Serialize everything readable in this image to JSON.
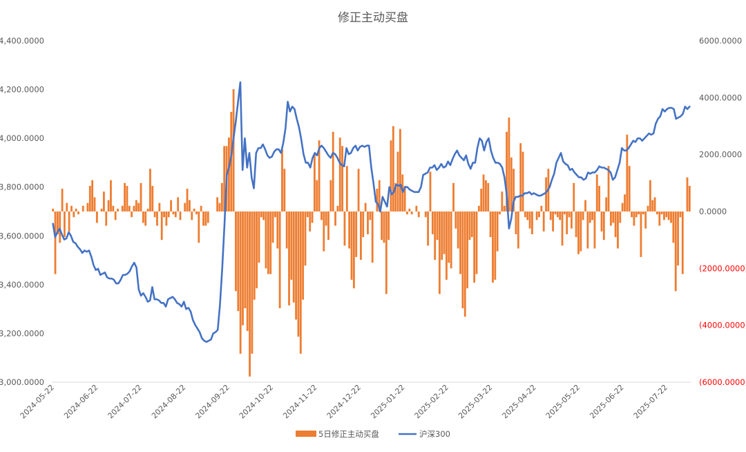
{
  "chart_data": {
    "type": "bar+line",
    "title": "修正主动买盘",
    "x_tick_labels": [
      "2024-05-22",
      "2024-06-22",
      "2024-07-22",
      "2024-08-22",
      "2024-09-22",
      "2024-10-22",
      "2024-11-22",
      "2024-12-22",
      "2025-01-22",
      "2025-02-22",
      "2025-03-22",
      "2025-04-22",
      "2025-05-22",
      "2025-06-22",
      "2025-07-22"
    ],
    "left_axis": {
      "ylim": [
        3000,
        4400
      ],
      "tick_labels": [
        "3,000.0000",
        "3,200.0000",
        "3,400.0000",
        "3,600.0000",
        "3,800.0000",
        "4,000.0000",
        "4,200.0000",
        "4,400.0000"
      ]
    },
    "right_axis": {
      "ylim": [
        -6000,
        6000
      ],
      "tick_labels": [
        "(6000.0000)",
        "(4000.0000)",
        "(2000.0000)",
        "0.0000",
        "2000.0000",
        "4000.0000",
        "6000.0000"
      ],
      "negative_color": "#FF0000"
    },
    "grid": false,
    "legend_position": "bottom",
    "series": [
      {
        "name": "5日修正主动买盘",
        "type": "bar",
        "axis": "right",
        "color": "#ED7D31",
        "values": [
          100,
          -2200,
          -800,
          -1100,
          800,
          -900,
          300,
          -700,
          200,
          -200,
          100,
          -100,
          0,
          200,
          0,
          300,
          900,
          1100,
          500,
          -400,
          0,
          100,
          700,
          -500,
          400,
          1100,
          200,
          -300,
          100,
          0,
          200,
          1000,
          900,
          200,
          -200,
          200,
          400,
          300,
          1000,
          -400,
          -500,
          100,
          1500,
          900,
          -200,
          -500,
          300,
          -1000,
          -200,
          -500,
          -200,
          400,
          -100,
          -200,
          500,
          -300,
          0,
          300,
          800,
          400,
          -300,
          100,
          -100,
          -1100,
          200,
          -500,
          -500,
          -400,
          0,
          0,
          0,
          500,
          300,
          1000,
          2300,
          2300,
          2600,
          3500,
          4300,
          -2800,
          -3500,
          -5000,
          -4000,
          -3400,
          -4200,
          -5800,
          -5000,
          -3100,
          -2700,
          -1800,
          -200,
          -300,
          -2000,
          -2200,
          -2200,
          -1100,
          -200,
          -1300,
          -3400,
          2200,
          1500,
          -1300,
          -3300,
          -2400,
          -3200,
          -3800,
          -4400,
          -5000,
          -3100,
          -1900,
          -200,
          -700,
          -400,
          2000,
          1100,
          2500,
          -300,
          -1400,
          -500,
          -1000,
          1100,
          2800,
          -500,
          200,
          2600,
          2300,
          -1200,
          1600,
          -1300,
          -2400,
          -2700,
          -1600,
          1500,
          -1700,
          -900,
          300,
          -800,
          -300,
          -1800,
          0,
          800,
          1100,
          -1000,
          -1100,
          -2900,
          -1000,
          2500,
          3000,
          1000,
          2100,
          2900,
          1300,
          900,
          -100,
          100,
          -100,
          0,
          200,
          -200,
          0,
          0,
          -200,
          -1200,
          1400,
          -800,
          -1700,
          -1000,
          -2900,
          -1700,
          -1500,
          -2400,
          -1800,
          -2000,
          1000,
          -600,
          -1300,
          -2200,
          -3400,
          -3700,
          -2700,
          -1000,
          -900,
          -2500,
          -2200,
          200,
          800,
          1300,
          1100,
          1000,
          -900,
          -2500,
          -2400,
          -1400,
          -100,
          700,
          200,
          2800,
          3300,
          1900,
          1500,
          -800,
          -1300,
          2400,
          2100,
          -200,
          -300,
          -600,
          -800,
          0,
          -300,
          -200,
          200,
          -700,
          1200,
          1500,
          -300,
          -700,
          -100,
          -200,
          -300,
          -1200,
          -100,
          -800,
          -200,
          -600,
          1000,
          -900,
          -1500,
          -1400,
          -300,
          400,
          -1300,
          -400,
          -300,
          -1300,
          1300,
          900,
          -700,
          -1000,
          500,
          1600,
          -500,
          -400,
          -900,
          -1300,
          -400,
          300,
          600,
          2700,
          1600,
          -200,
          -500,
          -200,
          -100,
          -1600,
          -100,
          -600,
          200,
          1100,
          400,
          500,
          -100,
          -500,
          -100,
          -300,
          -200,
          -300,
          -400,
          -1100,
          -2800,
          -1900,
          -200,
          -2200,
          0,
          1200,
          900
        ]
      },
      {
        "name": "沪深300",
        "type": "line",
        "axis": "left",
        "color": "#4472C4",
        "values": [
          3650,
          3595,
          3615,
          3630,
          3605,
          3585,
          3590,
          3615,
          3600,
          3575,
          3570,
          3555,
          3545,
          3530,
          3540,
          3535,
          3540,
          3515,
          3480,
          3460,
          3465,
          3440,
          3445,
          3450,
          3430,
          3425,
          3425,
          3420,
          3405,
          3405,
          3420,
          3440,
          3440,
          3445,
          3455,
          3475,
          3490,
          3470,
          3380,
          3355,
          3365,
          3350,
          3330,
          3335,
          3390,
          3340,
          3340,
          3335,
          3325,
          3325,
          3310,
          3340,
          3345,
          3350,
          3340,
          3325,
          3320,
          3310,
          3330,
          3300,
          3305,
          3290,
          3255,
          3235,
          3220,
          3205,
          3180,
          3170,
          3165,
          3170,
          3175,
          3200,
          3205,
          3215,
          3320,
          3470,
          3650,
          3850,
          3880,
          3930,
          4000,
          4070,
          4150,
          4230,
          3870,
          4000,
          3880,
          3940,
          3840,
          3795,
          3940,
          3960,
          3960,
          3975,
          3955,
          3930,
          3920,
          3925,
          3945,
          3955,
          3955,
          3940,
          3980,
          4040,
          4150,
          4110,
          4130,
          4120,
          4080,
          4045,
          3995,
          3935,
          3900,
          3900,
          3880,
          3920,
          3940,
          3930,
          3960,
          3970,
          3960,
          3945,
          3930,
          3920,
          3940,
          3935,
          3920,
          3900,
          3890,
          3885,
          3960,
          3935,
          3940,
          3960,
          3970,
          3950,
          3965,
          3970,
          3965,
          3970,
          3970,
          3880,
          3815,
          3740,
          3730,
          3700,
          3760,
          3740,
          3720,
          3800,
          3770,
          3780,
          3810,
          3805,
          3810,
          3780,
          3800,
          3800,
          3790,
          3785,
          3780,
          3780,
          3780,
          3800,
          3850,
          3855,
          3860,
          3880,
          3880,
          3890,
          3870,
          3880,
          3895,
          3880,
          3885,
          3905,
          3890,
          3915,
          3935,
          3950,
          3930,
          3920,
          3910,
          3930,
          3895,
          3875,
          3900,
          3900,
          3960,
          4000,
          3990,
          3950,
          3985,
          4000,
          3950,
          3920,
          3900,
          3900,
          3895,
          3880,
          3840,
          3770,
          3630,
          3670,
          3740,
          3760,
          3760,
          3765,
          3765,
          3775,
          3775,
          3780,
          3770,
          3775,
          3770,
          3765,
          3765,
          3770,
          3775,
          3785,
          3800,
          3830,
          3855,
          3900,
          3920,
          3940,
          3905,
          3895,
          3890,
          3870,
          3875,
          3860,
          3850,
          3840,
          3840,
          3830,
          3835,
          3860,
          3855,
          3860,
          3860,
          3870,
          3885,
          3880,
          3880,
          3875,
          3870,
          3860,
          3830,
          3840,
          3870,
          3900,
          3960,
          3950,
          3950,
          3960,
          3975,
          3990,
          3985,
          4000,
          4000,
          3990,
          4000,
          4010,
          4020,
          4015,
          4020,
          4060,
          4080,
          4090,
          4120,
          4110,
          4120,
          4125,
          4125,
          4120,
          4080,
          4085,
          4090,
          4100,
          4130,
          4120,
          4130
        ]
      }
    ]
  }
}
